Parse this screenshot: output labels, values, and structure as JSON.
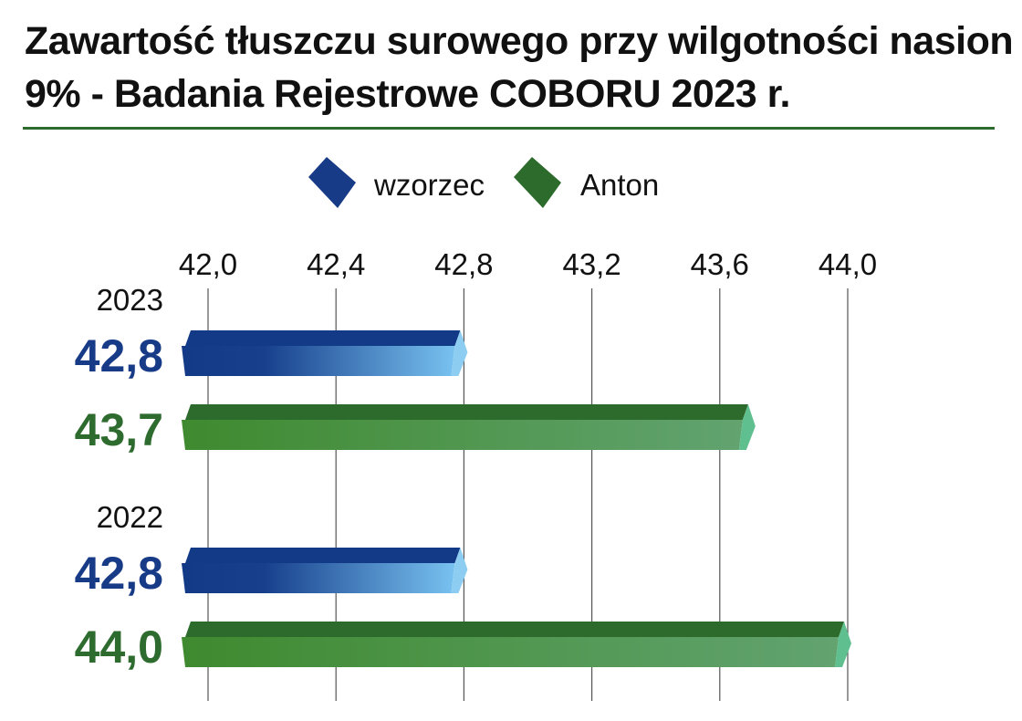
{
  "title": {
    "line1": "Zawartość tłuszczu surowego przy wilgotności nasion",
    "line2": "9% - Badania Rejestrowe COBORU 2023 r."
  },
  "colors": {
    "wzorzec_dark": "#133a86",
    "wzorzec_light": "#78c2f0",
    "anton_dark": "#3f8a2f",
    "anton_light": "#62a370",
    "anton_top": "#2c6b2c",
    "anton_label": "#2e6b2f",
    "wzorzec_label": "#173b87",
    "rule": "#2e6b2f"
  },
  "chart_data": {
    "type": "bar",
    "orientation": "horizontal",
    "xlim": [
      42.0,
      44.0
    ],
    "ticks": [
      "42,0",
      "42,4",
      "42,8",
      "43,2",
      "43,6",
      "44,0"
    ],
    "tick_values": [
      42.0,
      42.4,
      42.8,
      43.2,
      43.6,
      44.0
    ],
    "legend": [
      "wzorzec",
      "Anton"
    ],
    "groups": [
      {
        "label": "2023",
        "bars": [
          {
            "series": "wzorzec",
            "value": 42.8,
            "label": "42,8"
          },
          {
            "series": "Anton",
            "value": 43.7,
            "label": "43,7"
          }
        ]
      },
      {
        "label": "2022",
        "bars": [
          {
            "series": "wzorzec",
            "value": 42.8,
            "label": "42,8"
          },
          {
            "series": "Anton",
            "value": 44.0,
            "label": "44,0"
          }
        ]
      }
    ]
  }
}
